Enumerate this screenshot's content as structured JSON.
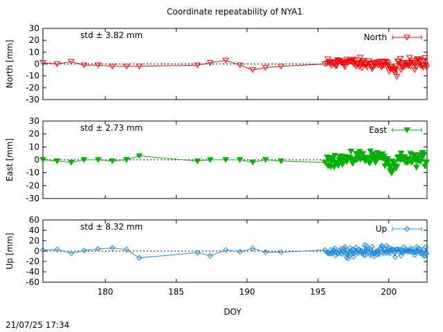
{
  "title": "Coordinate repeatability of NYA1",
  "footer_timestamp": "21/07/25 17:34",
  "chart_data": [
    {
      "type": "scatter",
      "panel": "north",
      "ylabel": "North [mm]",
      "xlabel": "",
      "xlim": [
        175.6,
        202.7
      ],
      "ylim": [
        -30,
        30
      ],
      "y_ticks": [
        -30,
        -20,
        -10,
        0,
        10,
        20,
        30
      ],
      "x_ticks": [
        180,
        185,
        190,
        195,
        200
      ],
      "zero_line": "dotted",
      "color": "#ff0000",
      "marker": "triangle-down-open",
      "legend_position": "top-right",
      "annotation": "std ± 3.82 mm",
      "series": [
        {
          "name": "North",
          "x": [
            175.6,
            176.6,
            177.6,
            178.5,
            179.5,
            180.5,
            181.5,
            182.4,
            186.5,
            187.4,
            188.5,
            189.5,
            190.4,
            191.3,
            192.4,
            195.5
          ],
          "y": [
            1,
            0,
            2,
            -1,
            -1,
            -2,
            -2,
            -2,
            -1,
            1,
            3,
            -1,
            -5,
            -3,
            -2,
            0
          ]
        }
      ]
    },
    {
      "type": "scatter",
      "panel": "east",
      "ylabel": "East [mm]",
      "xlabel": "",
      "xlim": [
        175.6,
        202.7
      ],
      "ylim": [
        -30,
        30
      ],
      "y_ticks": [
        -30,
        -20,
        -10,
        0,
        10,
        20,
        30
      ],
      "x_ticks": [
        180,
        185,
        190,
        195,
        200
      ],
      "zero_line": "dotted",
      "color": "#00b000",
      "marker": "triangle-down-filled",
      "legend_position": "top-right",
      "annotation": "std ± 2.73 mm",
      "series": [
        {
          "name": "East",
          "x": [
            175.6,
            176.6,
            177.6,
            178.5,
            179.5,
            180.5,
            181.5,
            182.4,
            186.5,
            187.4,
            188.5,
            189.5,
            190.4,
            191.3,
            192.4,
            195.5
          ],
          "y": [
            0,
            -1,
            -2,
            0,
            0,
            -1,
            0,
            3,
            -1,
            0,
            0,
            0,
            -2,
            0,
            -1,
            -2
          ]
        }
      ]
    },
    {
      "type": "scatter",
      "panel": "up",
      "ylabel": "Up [mm]",
      "xlabel": "DOY",
      "xlim": [
        175.6,
        202.7
      ],
      "ylim": [
        -60,
        60
      ],
      "y_ticks": [
        -60,
        -40,
        -20,
        0,
        20,
        40,
        60
      ],
      "x_ticks": [
        180,
        185,
        190,
        195,
        200
      ],
      "zero_line": "dotted",
      "color": "#1e8ce0",
      "marker": "diamond-open",
      "legend_position": "top-right",
      "annotation": "std ± 8.32 mm",
      "series": [
        {
          "name": "Up",
          "x": [
            175.6,
            176.6,
            177.6,
            178.5,
            179.5,
            180.5,
            181.5,
            182.4,
            186.5,
            187.4,
            188.5,
            189.5,
            190.4,
            191.3,
            192.4,
            195.5
          ],
          "y": [
            2,
            3,
            -4,
            1,
            4,
            6,
            3,
            -13,
            -3,
            -9,
            2,
            -1,
            5,
            -2,
            -2,
            2
          ]
        }
      ]
    }
  ]
}
